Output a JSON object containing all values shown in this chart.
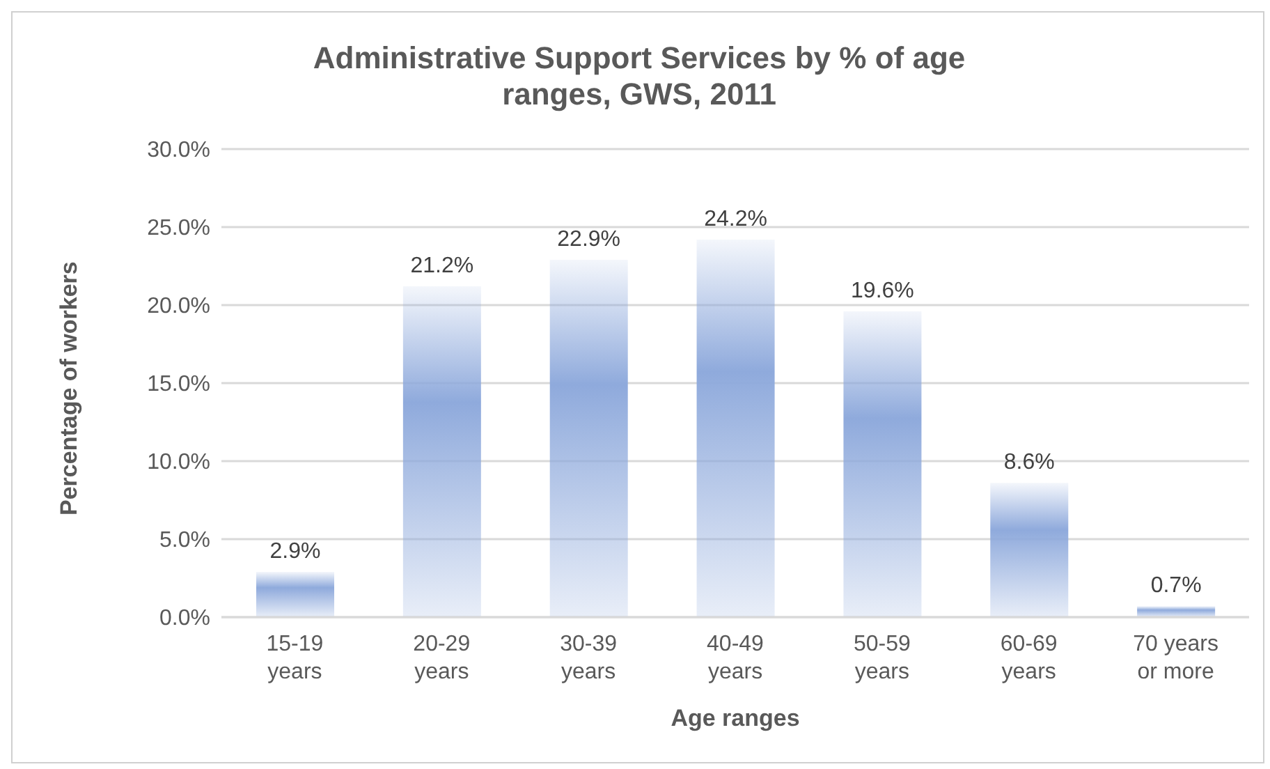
{
  "chart_data": {
    "type": "bar",
    "title": "Administrative Support Services by % of age ranges, GWS, 2011",
    "xlabel": "Age ranges",
    "ylabel": "Percentage of workers",
    "categories": [
      "15-19 years",
      "20-29 years",
      "30-39 years",
      "40-49 years",
      "50-59 years",
      "60-69 years",
      "70 years or more"
    ],
    "values": [
      2.9,
      21.2,
      22.9,
      24.2,
      19.6,
      8.6,
      0.7
    ],
    "value_labels": [
      "2.9%",
      "21.2%",
      "22.9%",
      "24.2%",
      "19.6%",
      "8.6%",
      "0.7%"
    ],
    "color": "#8faadc",
    "ylim": [
      0,
      30
    ],
    "yticks": [
      {
        "value": 0,
        "label": "0.0%"
      },
      {
        "value": 5,
        "label": "5.0%"
      },
      {
        "value": 10,
        "label": "10.0%"
      },
      {
        "value": 15,
        "label": "15.0%"
      },
      {
        "value": 20,
        "label": "20.0%"
      },
      {
        "value": 25,
        "label": "25.0%"
      },
      {
        "value": 30,
        "label": "30.0%"
      }
    ],
    "grid": "y",
    "legend": false
  }
}
